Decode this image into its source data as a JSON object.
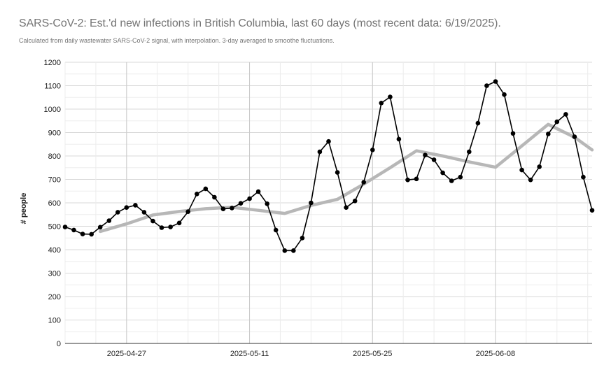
{
  "title": "SARS-CoV-2: Est.'d new infections in British Columbia, last 60 days (most recent data: 6/19/2025).",
  "subtitle": "Calculated from daily wastewater SARS-CoV-2 signal, with interpolation. 3-day averaged to smoothe fluctuations.",
  "colors": {
    "daily": "#000000",
    "trend": "#b7b7b7",
    "grid": "#d9d9d9",
    "major_grid": "#c8c8c8",
    "text": "#222222",
    "title": "#757575"
  },
  "chart_data": {
    "type": "line",
    "title": "SARS-CoV-2: Est.'d new infections in British Columbia, last 60 days (most recent data: 6/19/2025).",
    "xlabel": "",
    "ylabel": "# people",
    "ylim": [
      0,
      1200
    ],
    "yticks": [
      0,
      100,
      200,
      300,
      400,
      500,
      600,
      700,
      800,
      900,
      1000,
      1100,
      1200
    ],
    "xlim": [
      "2025-04-20",
      "2025-06-19"
    ],
    "xticks": [
      "2025-04-27",
      "2025-05-11",
      "2025-05-25",
      "2025-06-08"
    ],
    "grid": true,
    "legend": "none",
    "series": [
      {
        "style": "line-with-markers",
        "color": "#000000",
        "x": [
          "2025-04-20",
          "2025-04-21",
          "2025-04-22",
          "2025-04-23",
          "2025-04-24",
          "2025-04-25",
          "2025-04-26",
          "2025-04-27",
          "2025-04-28",
          "2025-04-29",
          "2025-04-30",
          "2025-05-01",
          "2025-05-02",
          "2025-05-03",
          "2025-05-04",
          "2025-05-05",
          "2025-05-06",
          "2025-05-07",
          "2025-05-08",
          "2025-05-09",
          "2025-05-10",
          "2025-05-11",
          "2025-05-12",
          "2025-05-13",
          "2025-05-14",
          "2025-05-15",
          "2025-05-16",
          "2025-05-17",
          "2025-05-18",
          "2025-05-19",
          "2025-05-20",
          "2025-05-21",
          "2025-05-22",
          "2025-05-23",
          "2025-05-24",
          "2025-05-25",
          "2025-05-26",
          "2025-05-27",
          "2025-05-28",
          "2025-05-29",
          "2025-05-30",
          "2025-05-31",
          "2025-06-01",
          "2025-06-02",
          "2025-06-03",
          "2025-06-04",
          "2025-06-05",
          "2025-06-06",
          "2025-06-07",
          "2025-06-08",
          "2025-06-09",
          "2025-06-10",
          "2025-06-11",
          "2025-06-12",
          "2025-06-13",
          "2025-06-14",
          "2025-06-15",
          "2025-06-16",
          "2025-06-17",
          "2025-06-18",
          "2025-06-19"
        ],
        "values": [
          497,
          484,
          467,
          466,
          496,
          524,
          560,
          580,
          590,
          560,
          522,
          494,
          497,
          514,
          562,
          638,
          660,
          624,
          574,
          578,
          598,
          618,
          648,
          596,
          484,
          396,
          396,
          450,
          600,
          818,
          862,
          730,
          580,
          608,
          688,
          826,
          1026,
          1052,
          872,
          698,
          702,
          804,
          784,
          728,
          694,
          710,
          818,
          940,
          1100,
          1118,
          1062,
          896,
          740,
          698,
          754,
          894,
          946,
          978,
          882,
          710,
          568
        ]
      },
      {
        "style": "line",
        "color": "#b7b7b7",
        "x": [
          "2025-04-24",
          "2025-04-27",
          "2025-04-30",
          "2025-05-03",
          "2025-05-06",
          "2025-05-09",
          "2025-05-12",
          "2025-05-15",
          "2025-05-18",
          "2025-05-21",
          "2025-05-24",
          "2025-05-27",
          "2025-05-30",
          "2025-06-02",
          "2025-06-05",
          "2025-06-08",
          "2025-06-11",
          "2025-06-14",
          "2025-06-17",
          "2025-06-19"
        ],
        "values": [
          478,
          510,
          548,
          563,
          575,
          581,
          568,
          555,
          589,
          615,
          680,
          750,
          822,
          800,
          775,
          752,
          843,
          935,
          880,
          826
        ]
      }
    ]
  }
}
